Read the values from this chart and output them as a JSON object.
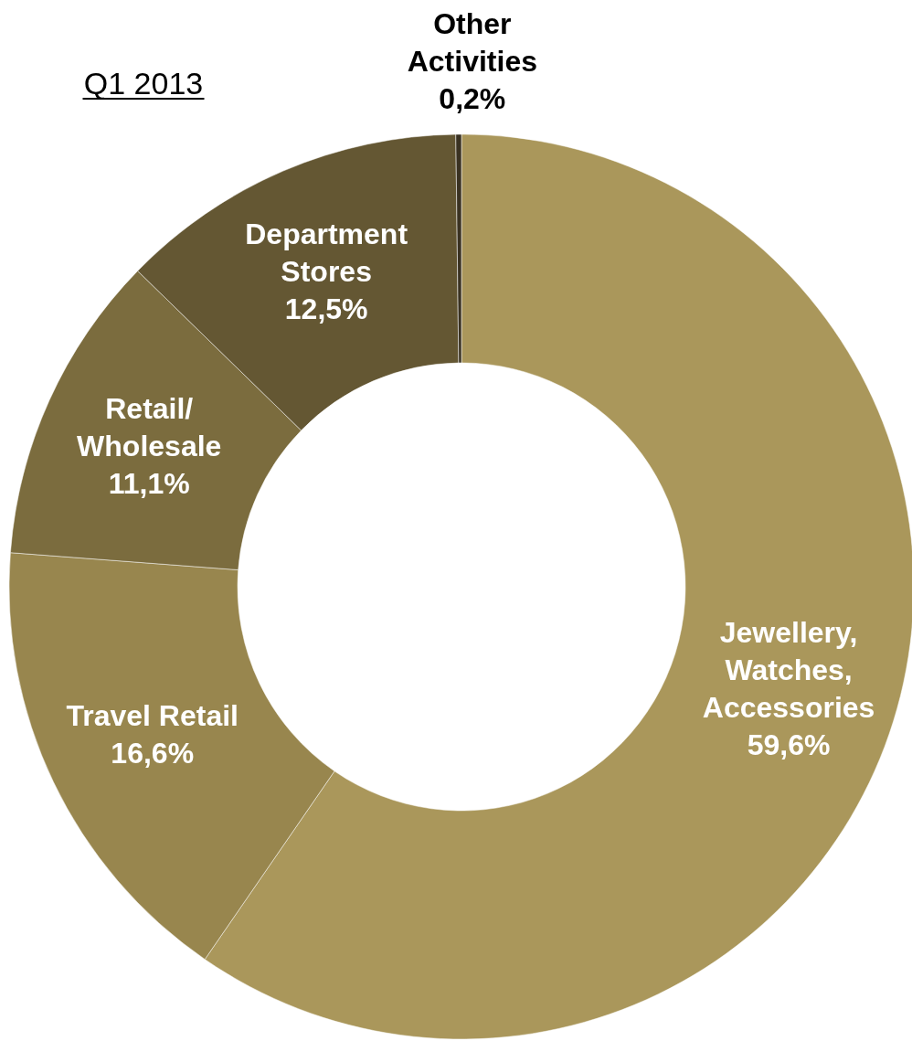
{
  "chart_data": {
    "type": "donut",
    "title": "Q1 2013",
    "categories": [
      "Jewellery,\nWatches,\nAccessories",
      "Travel Retail",
      "Retail/\nWholesale",
      "Department\nStores",
      "Other\nActivities"
    ],
    "values": [
      59.6,
      16.6,
      11.1,
      12.5,
      0.2
    ],
    "value_labels": [
      "59,6%",
      "16,6%",
      "11,1%",
      "12,5%",
      "0,2%"
    ],
    "colors": [
      "#aa975b",
      "#98864e",
      "#7b6c3e",
      "#645733",
      "#3a3222"
    ]
  }
}
